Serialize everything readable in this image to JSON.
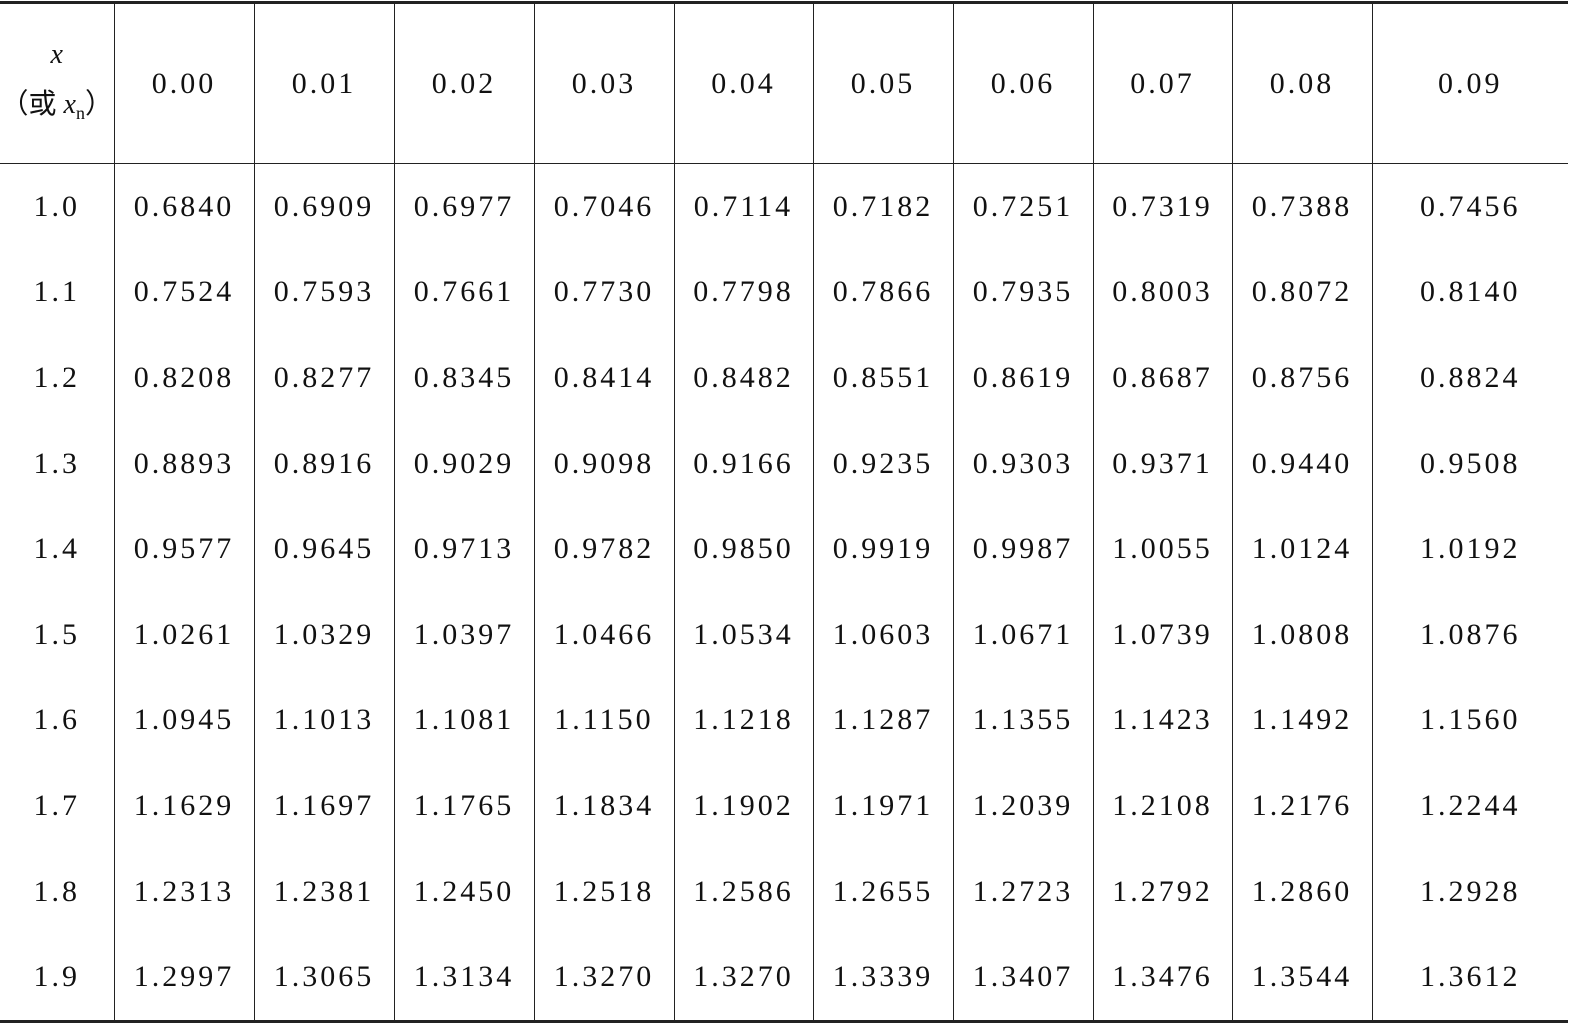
{
  "table": {
    "corner": {
      "symbol": "x",
      "alt_open": "（或 ",
      "alt_symbol": "x",
      "alt_subscript": "n",
      "alt_close": "）"
    },
    "columns": [
      "0.00",
      "0.01",
      "0.02",
      "0.03",
      "0.04",
      "0.05",
      "0.06",
      "0.07",
      "0.08",
      "0.09"
    ],
    "rows": [
      {
        "label": "1.0",
        "cells": [
          "0.6840",
          "0.6909",
          "0.6977",
          "0.7046",
          "0.7114",
          "0.7182",
          "0.7251",
          "0.7319",
          "0.7388",
          "0.7456"
        ]
      },
      {
        "label": "1.1",
        "cells": [
          "0.7524",
          "0.7593",
          "0.7661",
          "0.7730",
          "0.7798",
          "0.7866",
          "0.7935",
          "0.8003",
          "0.8072",
          "0.8140"
        ]
      },
      {
        "label": "1.2",
        "cells": [
          "0.8208",
          "0.8277",
          "0.8345",
          "0.8414",
          "0.8482",
          "0.8551",
          "0.8619",
          "0.8687",
          "0.8756",
          "0.8824"
        ]
      },
      {
        "label": "1.3",
        "cells": [
          "0.8893",
          "0.8916",
          "0.9029",
          "0.9098",
          "0.9166",
          "0.9235",
          "0.9303",
          "0.9371",
          "0.9440",
          "0.9508"
        ]
      },
      {
        "label": "1.4",
        "cells": [
          "0.9577",
          "0.9645",
          "0.9713",
          "0.9782",
          "0.9850",
          "0.9919",
          "0.9987",
          "1.0055",
          "1.0124",
          "1.0192"
        ]
      },
      {
        "label": "1.5",
        "cells": [
          "1.0261",
          "1.0329",
          "1.0397",
          "1.0466",
          "1.0534",
          "1.0603",
          "1.0671",
          "1.0739",
          "1.0808",
          "1.0876"
        ]
      },
      {
        "label": "1.6",
        "cells": [
          "1.0945",
          "1.1013",
          "1.1081",
          "1.1150",
          "1.1218",
          "1.1287",
          "1.1355",
          "1.1423",
          "1.1492",
          "1.1560"
        ]
      },
      {
        "label": "1.7",
        "cells": [
          "1.1629",
          "1.1697",
          "1.1765",
          "1.1834",
          "1.1902",
          "1.1971",
          "1.2039",
          "1.2108",
          "1.2176",
          "1.2244"
        ]
      },
      {
        "label": "1.8",
        "cells": [
          "1.2313",
          "1.2381",
          "1.2450",
          "1.2518",
          "1.2586",
          "1.2655",
          "1.2723",
          "1.2792",
          "1.2860",
          "1.2928"
        ]
      },
      {
        "label": "1.9",
        "cells": [
          "1.2997",
          "1.3065",
          "1.3134",
          "1.3270",
          "1.3270",
          "1.3339",
          "1.3407",
          "1.3476",
          "1.3544",
          "1.3612"
        ]
      }
    ]
  }
}
